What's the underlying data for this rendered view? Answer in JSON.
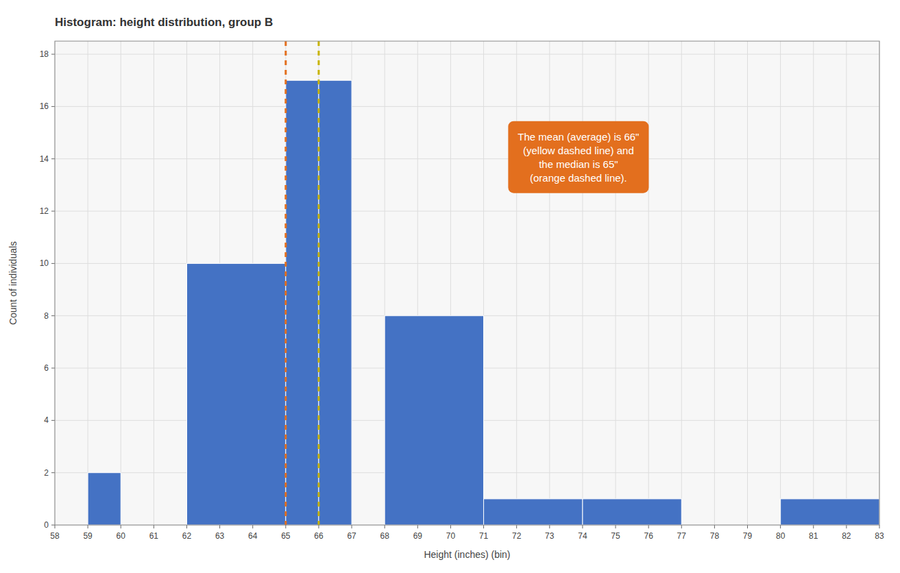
{
  "chart_data": {
    "type": "histogram",
    "title": "Histogram: height distribution, group B",
    "x_label": "Height (inches) (bin)",
    "y_label": "Count of individuals",
    "x": [
      59,
      62,
      65,
      66,
      68,
      71,
      74,
      80
    ],
    "x_end": [
      60,
      65,
      66,
      67,
      71,
      74,
      77,
      83
    ],
    "values": [
      2,
      10,
      17,
      17,
      8,
      1,
      1,
      1
    ],
    "color": "#4472c4",
    "lines": [
      {
        "value": 65,
        "color": "#e36f1e",
        "line_style": "dashed"
      },
      {
        "value": 66,
        "color": "#c8b400",
        "line_style": "dashed"
      }
    ],
    "annotation": {
      "text": "The mean (average) is 66\"\n(yellow dashed line) and\nthe median is 65\"\n(orange dashed line).",
      "color": "#e36f1e"
    },
    "xlim": [
      58,
      83
    ],
    "ylim": [
      0,
      18.5
    ],
    "xticks": [
      58,
      59,
      60,
      61,
      62,
      63,
      64,
      65,
      66,
      67,
      68,
      69,
      70,
      71,
      72,
      73,
      74,
      75,
      76,
      77,
      78,
      79,
      80,
      81,
      82,
      83
    ],
    "yticks": [
      0,
      2,
      4,
      6,
      8,
      10,
      12,
      14,
      16,
      18
    ],
    "grid": true
  }
}
